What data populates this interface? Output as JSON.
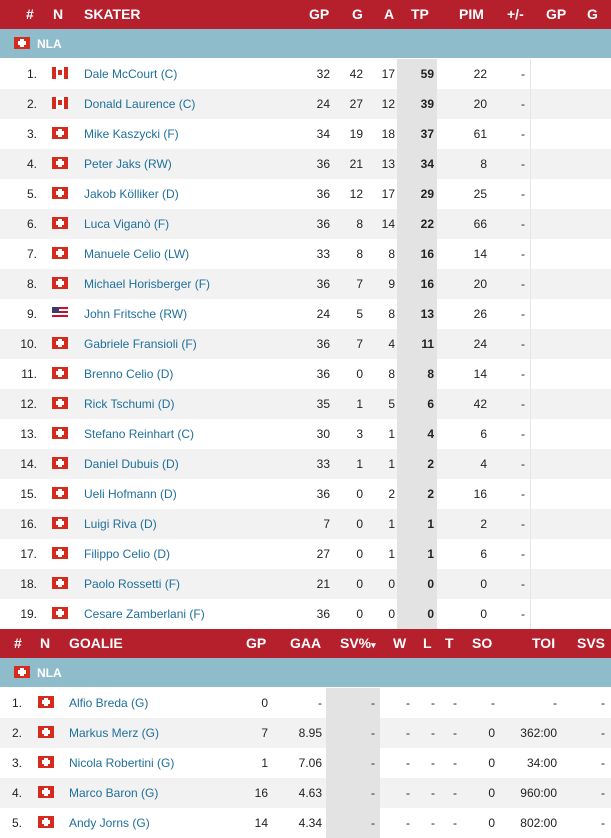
{
  "skater_header": {
    "num": "#",
    "nat": "N",
    "name": "SKATER",
    "gp": "GP",
    "g": "G",
    "a": "A",
    "tp": "TP",
    "pim": "PIM",
    "pm": "+/-",
    "gp2": "GP",
    "g2": "G"
  },
  "league": "NLA",
  "skaters": [
    {
      "rank": "1.",
      "flag": "ca",
      "name": "Dale McCourt (C)",
      "gp": "32",
      "g": "42",
      "a": "17",
      "tp": "59",
      "pim": "22",
      "pm": "-"
    },
    {
      "rank": "2.",
      "flag": "ca",
      "name": "Donald Laurence (C)",
      "gp": "24",
      "g": "27",
      "a": "12",
      "tp": "39",
      "pim": "20",
      "pm": "-"
    },
    {
      "rank": "3.",
      "flag": "ch",
      "name": "Mike Kaszycki (F)",
      "gp": "34",
      "g": "19",
      "a": "18",
      "tp": "37",
      "pim": "61",
      "pm": "-"
    },
    {
      "rank": "4.",
      "flag": "ch",
      "name": "Peter Jaks (RW)",
      "gp": "36",
      "g": "21",
      "a": "13",
      "tp": "34",
      "pim": "8",
      "pm": "-"
    },
    {
      "rank": "5.",
      "flag": "ch",
      "name": "Jakob Kölliker (D)",
      "gp": "36",
      "g": "12",
      "a": "17",
      "tp": "29",
      "pim": "25",
      "pm": "-"
    },
    {
      "rank": "6.",
      "flag": "ch",
      "name": "Luca Viganò (F)",
      "gp": "36",
      "g": "8",
      "a": "14",
      "tp": "22",
      "pim": "66",
      "pm": "-"
    },
    {
      "rank": "7.",
      "flag": "ch",
      "name": "Manuele Celio (LW)",
      "gp": "33",
      "g": "8",
      "a": "8",
      "tp": "16",
      "pim": "14",
      "pm": "-"
    },
    {
      "rank": "8.",
      "flag": "ch",
      "name": "Michael Horisberger (F)",
      "gp": "36",
      "g": "7",
      "a": "9",
      "tp": "16",
      "pim": "20",
      "pm": "-"
    },
    {
      "rank": "9.",
      "flag": "us",
      "name": "John Fritsche (RW)",
      "gp": "24",
      "g": "5",
      "a": "8",
      "tp": "13",
      "pim": "26",
      "pm": "-"
    },
    {
      "rank": "10.",
      "flag": "ch",
      "name": "Gabriele Fransioli (F)",
      "gp": "36",
      "g": "7",
      "a": "4",
      "tp": "11",
      "pim": "24",
      "pm": "-"
    },
    {
      "rank": "11.",
      "flag": "ch",
      "name": "Brenno Celio (D)",
      "gp": "36",
      "g": "0",
      "a": "8",
      "tp": "8",
      "pim": "14",
      "pm": "-"
    },
    {
      "rank": "12.",
      "flag": "ch",
      "name": "Rick Tschumi (D)",
      "gp": "35",
      "g": "1",
      "a": "5",
      "tp": "6",
      "pim": "42",
      "pm": "-"
    },
    {
      "rank": "13.",
      "flag": "ch",
      "name": "Stefano Reinhart (C)",
      "gp": "30",
      "g": "3",
      "a": "1",
      "tp": "4",
      "pim": "6",
      "pm": "-"
    },
    {
      "rank": "14.",
      "flag": "ch",
      "name": "Daniel Dubuis (D)",
      "gp": "33",
      "g": "1",
      "a": "1",
      "tp": "2",
      "pim": "4",
      "pm": "-"
    },
    {
      "rank": "15.",
      "flag": "ch",
      "name": "Ueli Hofmann (D)",
      "gp": "36",
      "g": "0",
      "a": "2",
      "tp": "2",
      "pim": "16",
      "pm": "-"
    },
    {
      "rank": "16.",
      "flag": "ch",
      "name": "Luigi Riva (D)",
      "gp": "7",
      "g": "0",
      "a": "1",
      "tp": "1",
      "pim": "2",
      "pm": "-"
    },
    {
      "rank": "17.",
      "flag": "ch",
      "name": "Filippo Celio (D)",
      "gp": "27",
      "g": "0",
      "a": "1",
      "tp": "1",
      "pim": "6",
      "pm": "-"
    },
    {
      "rank": "18.",
      "flag": "ch",
      "name": "Paolo Rossetti (F)",
      "gp": "21",
      "g": "0",
      "a": "0",
      "tp": "0",
      "pim": "0",
      "pm": "-"
    },
    {
      "rank": "19.",
      "flag": "ch",
      "name": "Cesare Zamberlani (F)",
      "gp": "36",
      "g": "0",
      "a": "0",
      "tp": "0",
      "pim": "0",
      "pm": "-"
    }
  ],
  "goalie_header": {
    "num": "#",
    "nat": "N",
    "name": "GOALIE",
    "gp": "GP",
    "gaa": "GAA",
    "sv": "SV%",
    "sort_icon": "▾",
    "w": "W",
    "l": "L",
    "t": "T",
    "so": "SO",
    "toi": "TOI",
    "svs": "SVS"
  },
  "goalies": [
    {
      "rank": "1.",
      "flag": "ch",
      "name": "Alfio Breda (G)",
      "gp": "0",
      "gaa": "-",
      "sv": "-",
      "w": "-",
      "l": "-",
      "t": "-",
      "so": "-",
      "toi": "-",
      "svs": "-"
    },
    {
      "rank": "2.",
      "flag": "ch",
      "name": "Markus Merz (G)",
      "gp": "7",
      "gaa": "8.95",
      "sv": "-",
      "w": "-",
      "l": "-",
      "t": "-",
      "so": "0",
      "toi": "362:00",
      "svs": "-"
    },
    {
      "rank": "3.",
      "flag": "ch",
      "name": "Nicola Robertini (G)",
      "gp": "1",
      "gaa": "7.06",
      "sv": "-",
      "w": "-",
      "l": "-",
      "t": "-",
      "so": "0",
      "toi": "34:00",
      "svs": "-"
    },
    {
      "rank": "4.",
      "flag": "ch",
      "name": "Marco Baron (G)",
      "gp": "16",
      "gaa": "4.63",
      "sv": "-",
      "w": "-",
      "l": "-",
      "t": "-",
      "so": "0",
      "toi": "960:00",
      "svs": "-"
    },
    {
      "rank": "5.",
      "flag": "ch",
      "name": "Andy Jorns (G)",
      "gp": "14",
      "gaa": "4.34",
      "sv": "-",
      "w": "-",
      "l": "-",
      "t": "-",
      "so": "0",
      "toi": "802:00",
      "svs": "-"
    }
  ],
  "colors": {
    "header_bg": "#b5202c",
    "league_bg": "#8fbccb",
    "link": "#1f6f9c"
  }
}
